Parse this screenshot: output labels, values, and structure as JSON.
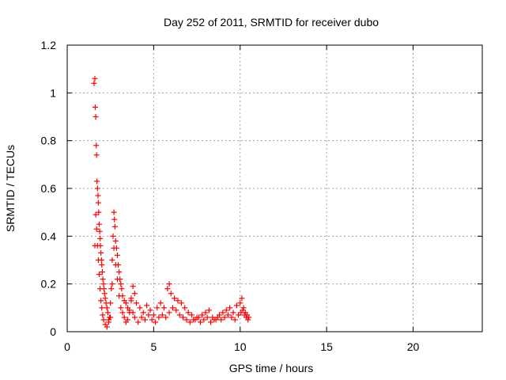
{
  "chart_data": {
    "type": "scatter",
    "title": "Day 252 of 2011, SRMTID for receiver dubo",
    "xlabel": "GPS time / hours",
    "ylabel": "SRMTID / TECUs",
    "xlim": [
      0,
      24
    ],
    "ylim": [
      0,
      1.2
    ],
    "xticks": [
      "0",
      "5",
      "10",
      "15",
      "20"
    ],
    "yticks": [
      "0",
      "0.2",
      "0.4",
      "0.6",
      "0.8",
      "1",
      "1.2"
    ],
    "grid": true,
    "legend": "none",
    "marker": "+",
    "color": "#ff0000",
    "series": [
      {
        "x": [
          1.55,
          1.6,
          1.62,
          1.65,
          1.68,
          1.7,
          1.72,
          1.75,
          1.78,
          1.8,
          1.82,
          1.85,
          1.88,
          1.9,
          1.92,
          1.95,
          1.98,
          2.0,
          2.03,
          2.06,
          2.1,
          2.13,
          2.16,
          2.2,
          2.25,
          2.3,
          2.35,
          2.4,
          2.45,
          2.5,
          2.55,
          2.6,
          2.65,
          2.7,
          2.73,
          2.76,
          2.8,
          2.85,
          2.9,
          2.95,
          3.0,
          3.05,
          3.1,
          3.15,
          3.2,
          3.3,
          3.4,
          3.5,
          3.6,
          3.7,
          3.8,
          3.9,
          4.0,
          4.2,
          4.4,
          4.6,
          4.8,
          5.0,
          5.2,
          5.4,
          5.6,
          5.8,
          5.9,
          6.0,
          6.2,
          6.4,
          6.6,
          6.8,
          7.0,
          7.2,
          7.4,
          7.6,
          7.8,
          8.0,
          8.2,
          8.4,
          8.6,
          8.8,
          9.0,
          9.2,
          9.4,
          9.6,
          9.8,
          10.0,
          10.1,
          10.2,
          10.3,
          10.4,
          10.5,
          1.6,
          1.65,
          1.7,
          1.75,
          1.8,
          1.85,
          1.9,
          1.95,
          2.0,
          2.05,
          2.1,
          2.2,
          2.3,
          2.4,
          2.5,
          2.6,
          2.7,
          2.8,
          2.9,
          3.0,
          3.1,
          3.2,
          3.3,
          3.4,
          3.5,
          3.6,
          3.7,
          3.8,
          3.9,
          4.1,
          4.3,
          4.5,
          4.7,
          4.9,
          5.1,
          5.3,
          5.5,
          5.7,
          5.9,
          6.1,
          6.3,
          6.5,
          6.7,
          6.9,
          7.1,
          7.3,
          7.5,
          7.7,
          7.9,
          8.1,
          8.3,
          8.5,
          8.7,
          8.9,
          9.1,
          9.3,
          9.5,
          9.7,
          9.9,
          10.05,
          10.15,
          10.25,
          10.35,
          10.45
        ],
        "y": [
          1.04,
          1.06,
          0.94,
          0.9,
          0.78,
          0.74,
          0.63,
          0.6,
          0.57,
          0.54,
          0.5,
          0.45,
          0.42,
          0.39,
          0.36,
          0.33,
          0.3,
          0.28,
          0.25,
          0.22,
          0.2,
          0.18,
          0.16,
          0.14,
          0.12,
          0.1,
          0.08,
          0.05,
          0.06,
          0.12,
          0.18,
          0.3,
          0.4,
          0.5,
          0.47,
          0.44,
          0.38,
          0.35,
          0.32,
          0.28,
          0.25,
          0.22,
          0.2,
          0.18,
          0.15,
          0.13,
          0.12,
          0.1,
          0.09,
          0.14,
          0.19,
          0.16,
          0.12,
          0.1,
          0.08,
          0.11,
          0.09,
          0.07,
          0.1,
          0.12,
          0.1,
          0.18,
          0.2,
          0.16,
          0.14,
          0.13,
          0.12,
          0.1,
          0.08,
          0.07,
          0.05,
          0.06,
          0.07,
          0.08,
          0.09,
          0.06,
          0.05,
          0.07,
          0.08,
          0.09,
          0.1,
          0.08,
          0.11,
          0.12,
          0.14,
          0.1,
          0.08,
          0.07,
          0.06,
          0.36,
          0.49,
          0.43,
          0.36,
          0.3,
          0.24,
          0.18,
          0.13,
          0.1,
          0.07,
          0.05,
          0.03,
          0.02,
          0.04,
          0.06,
          0.2,
          0.35,
          0.28,
          0.22,
          0.15,
          0.1,
          0.08,
          0.06,
          0.04,
          0.05,
          0.08,
          0.13,
          0.08,
          0.06,
          0.04,
          0.06,
          0.05,
          0.07,
          0.05,
          0.04,
          0.06,
          0.07,
          0.06,
          0.08,
          0.1,
          0.09,
          0.07,
          0.06,
          0.05,
          0.04,
          0.05,
          0.06,
          0.04,
          0.05,
          0.06,
          0.04,
          0.05,
          0.06,
          0.05,
          0.06,
          0.07,
          0.06,
          0.05,
          0.07,
          0.08,
          0.09,
          0.07,
          0.06,
          0.05
        ]
      }
    ]
  }
}
